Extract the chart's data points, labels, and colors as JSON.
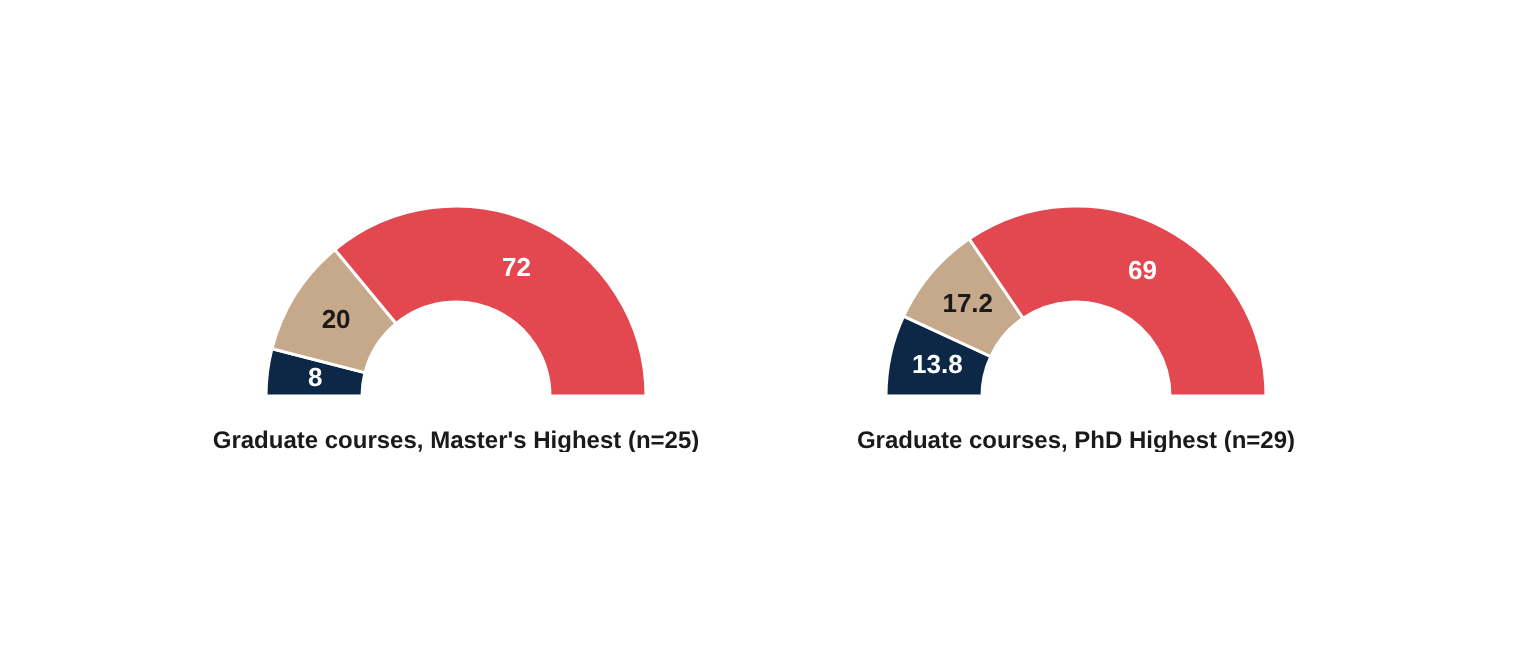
{
  "chart_data": [
    {
      "type": "donut",
      "title": "Graduate courses, Master's Highest (n=25)",
      "categories": [
        null,
        null,
        null
      ],
      "values": [
        8,
        20,
        72
      ],
      "colors": [
        "#0d2847",
        "#c6a98a",
        "#e3474f"
      ],
      "data_labels": true
    },
    {
      "type": "donut",
      "title": "Graduate courses, PhD Highest (n=29)",
      "categories": [
        null,
        null,
        null
      ],
      "values": [
        13.8,
        17.2,
        69
      ],
      "colors": [
        "#0d2847",
        "#c6a98a",
        "#e3474f"
      ],
      "data_labels": true
    }
  ]
}
